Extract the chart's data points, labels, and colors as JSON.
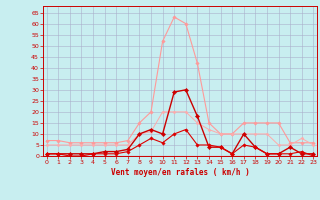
{
  "x": [
    0,
    1,
    2,
    3,
    4,
    5,
    6,
    7,
    8,
    9,
    10,
    11,
    12,
    13,
    14,
    15,
    16,
    17,
    18,
    19,
    20,
    21,
    22,
    23
  ],
  "series": [
    {
      "name": "rafales_light",
      "color": "#ff9999",
      "linewidth": 0.8,
      "marker": "D",
      "markersize": 1.8,
      "y": [
        7,
        7,
        6,
        6,
        6,
        6,
        6,
        7,
        15,
        20,
        52,
        63,
        60,
        42,
        15,
        10,
        10,
        15,
        15,
        15,
        15,
        6,
        6,
        6
      ]
    },
    {
      "name": "moyen_light",
      "color": "#ffaaaa",
      "linewidth": 0.7,
      "marker": "D",
      "markersize": 1.5,
      "y": [
        5,
        5,
        5,
        5,
        5,
        5,
        5,
        5,
        10,
        11,
        20,
        20,
        20,
        15,
        12,
        10,
        10,
        10,
        10,
        10,
        5,
        5,
        8,
        5
      ]
    },
    {
      "name": "rafales_dark",
      "color": "#cc0000",
      "linewidth": 1.0,
      "marker": "D",
      "markersize": 2.2,
      "y": [
        1,
        1,
        1,
        1,
        1,
        2,
        2,
        3,
        10,
        12,
        10,
        29,
        30,
        18,
        4,
        4,
        1,
        10,
        4,
        1,
        1,
        4,
        1,
        1
      ]
    },
    {
      "name": "moyen_dark",
      "color": "#dd0000",
      "linewidth": 0.8,
      "marker": "D",
      "markersize": 1.8,
      "y": [
        1,
        1,
        0,
        0,
        1,
        1,
        1,
        2,
        5,
        8,
        6,
        10,
        12,
        5,
        5,
        4,
        1,
        5,
        4,
        1,
        1,
        1,
        2,
        0
      ]
    }
  ],
  "xlim": [
    -0.3,
    23.3
  ],
  "ylim": [
    0,
    68
  ],
  "yticks": [
    0,
    5,
    10,
    15,
    20,
    25,
    30,
    35,
    40,
    45,
    50,
    55,
    60,
    65
  ],
  "xticks": [
    0,
    1,
    2,
    3,
    4,
    5,
    6,
    7,
    8,
    9,
    10,
    11,
    12,
    13,
    14,
    15,
    16,
    17,
    18,
    19,
    20,
    21,
    22,
    23
  ],
  "xlabel": "Vent moyen/en rafales ( km/h )",
  "bg_color": "#c8eef0",
  "grid_color": "#aab0cc",
  "tick_color": "#cc0000",
  "label_color": "#cc0000"
}
